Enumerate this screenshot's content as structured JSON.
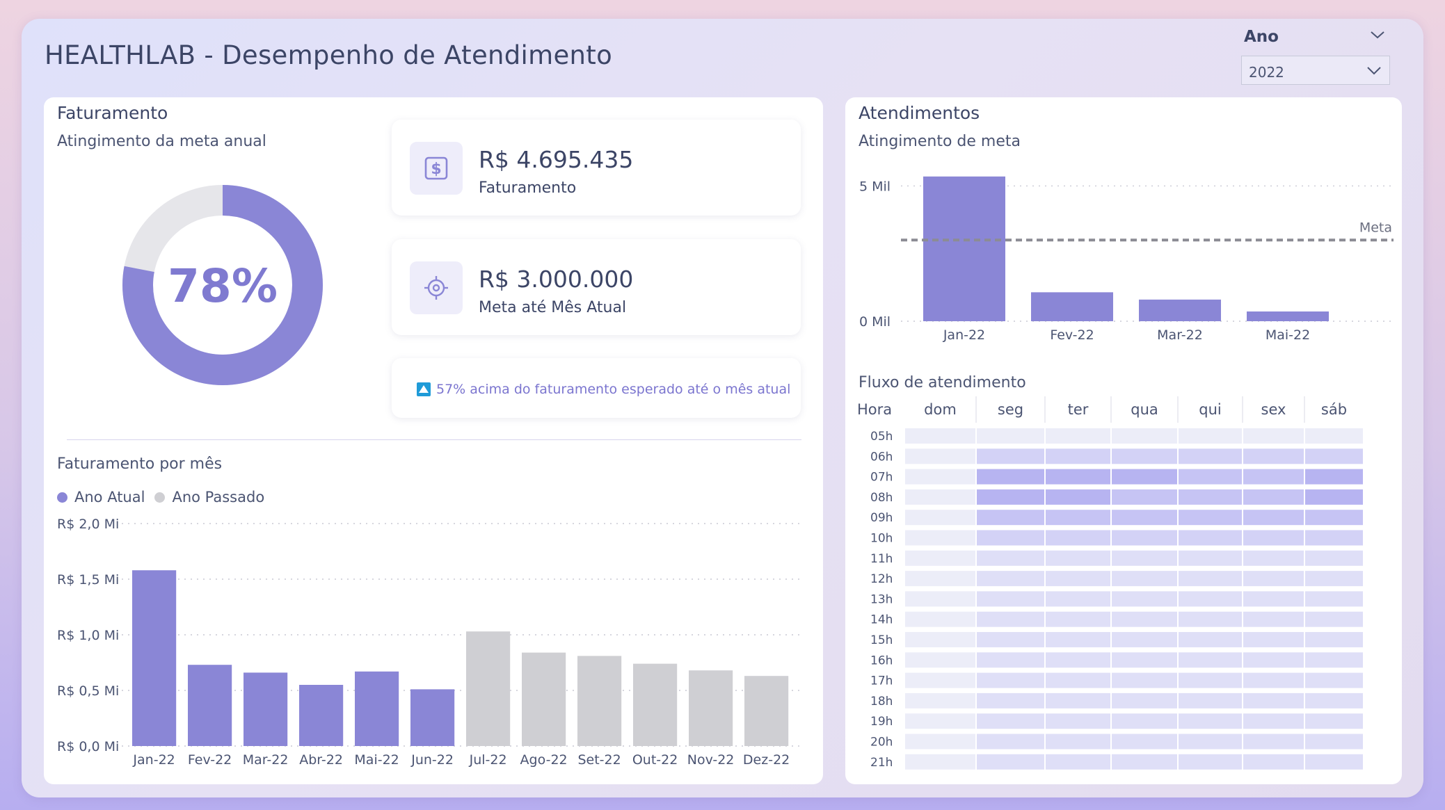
{
  "header": {
    "title": "HEALTHLAB - Desempenho de Atendimento"
  },
  "slicer": {
    "label": "Ano",
    "value": "2022"
  },
  "faturamento": {
    "title": "Faturamento",
    "donut_subtitle": "Atingimento da meta anual",
    "donut_percent": 78,
    "donut_label": "78%",
    "kpi_revenue": {
      "value": "R$ 4.695.435",
      "label": "Faturamento",
      "icon": "dollar-icon"
    },
    "kpi_target": {
      "value": "R$ 3.000.000",
      "label": "Meta até Mês Atual",
      "icon": "target-icon"
    },
    "note": "57% acima do faturamento esperado até o mês atual"
  },
  "monthly": {
    "title": "Faturamento por mês",
    "legend": [
      {
        "name": "Ano Atual",
        "color": "#8a86d6"
      },
      {
        "name": "Ano Passado",
        "color": "#cfcfd3"
      }
    ]
  },
  "atendimentos": {
    "title": "Atendimentos",
    "subtitle": "Atingimento de meta",
    "meta_label": "Meta"
  },
  "fluxo": {
    "title": "Fluxo de atendimento"
  },
  "chart_data": [
    {
      "type": "pie",
      "name": "donut",
      "values": [
        78,
        22
      ],
      "labels": [
        "",
        ""
      ],
      "center_label": "78%",
      "colors": [
        "#8a86d6",
        "#e6e6ea"
      ]
    },
    {
      "type": "bar",
      "name": "faturamento-por-mes",
      "categories": [
        "Jan-22",
        "Fev-22",
        "Mar-22",
        "Abr-22",
        "Mai-22",
        "Jun-22",
        "Jul-22",
        "Ago-22",
        "Set-22",
        "Out-22",
        "Nov-22",
        "Dez-22"
      ],
      "values": [
        1.58,
        0.73,
        0.66,
        0.55,
        0.67,
        0.51,
        1.03,
        0.84,
        0.81,
        0.74,
        0.68,
        0.63
      ],
      "series_of_bar": [
        "Ano Atual",
        "Ano Atual",
        "Ano Atual",
        "Ano Atual",
        "Ano Atual",
        "Ano Atual",
        "Ano Passado",
        "Ano Passado",
        "Ano Passado",
        "Ano Passado",
        "Ano Passado",
        "Ano Passado"
      ],
      "yticks": [
        "R$ 2,0 Mi",
        "R$ 1,5 Mi",
        "R$ 1,0 Mi",
        "R$ 0,5 Mi",
        "R$ 0,0 Mi"
      ],
      "ytick_values": [
        2.0,
        1.5,
        1.0,
        0.5,
        0.0
      ],
      "ylim": [
        0,
        2.0
      ],
      "grid": true
    },
    {
      "type": "bar",
      "name": "atendimentos-meta",
      "categories": [
        "Jan-22",
        "Fev-22",
        "Mar-22",
        "Mai-22"
      ],
      "values": [
        5350,
        1070,
        800,
        360
      ],
      "meta": 3000,
      "yticks": [
        "5 Mil",
        "0 Mil"
      ],
      "ytick_values": [
        5000,
        0
      ],
      "ylim": [
        0,
        5500
      ],
      "grid": true
    },
    {
      "type": "heatmap",
      "name": "fluxo-de-atendimento",
      "corner_label": "Hora",
      "columns": [
        "dom",
        "seg",
        "ter",
        "qua",
        "qui",
        "sex",
        "sáb"
      ],
      "rows": [
        "05h",
        "06h",
        "07h",
        "08h",
        "09h",
        "10h",
        "11h",
        "12h",
        "13h",
        "14h",
        "15h",
        "16h",
        "17h",
        "18h",
        "19h",
        "20h",
        "21h"
      ],
      "intensity": [
        [
          0,
          0,
          0,
          0,
          0,
          0,
          0
        ],
        [
          0,
          2,
          2,
          2,
          2,
          2,
          2
        ],
        [
          0,
          4,
          4,
          4,
          3,
          3,
          4
        ],
        [
          0,
          4,
          4,
          3,
          3,
          3,
          4
        ],
        [
          0,
          3,
          3,
          3,
          3,
          3,
          3
        ],
        [
          0,
          2,
          2,
          2,
          2,
          2,
          2
        ],
        [
          0,
          1,
          1,
          1,
          1,
          1,
          1
        ],
        [
          0,
          1,
          1,
          1,
          1,
          1,
          1
        ],
        [
          0,
          1,
          1,
          1,
          1,
          1,
          1
        ],
        [
          0,
          1,
          1,
          1,
          1,
          1,
          1
        ],
        [
          0,
          1,
          1,
          1,
          1,
          1,
          1
        ],
        [
          0,
          1,
          1,
          1,
          1,
          1,
          1
        ],
        [
          0,
          1,
          1,
          1,
          1,
          1,
          1
        ],
        [
          0,
          1,
          1,
          1,
          1,
          1,
          1
        ],
        [
          0,
          1,
          1,
          1,
          1,
          1,
          1
        ],
        [
          0,
          1,
          1,
          1,
          1,
          1,
          1
        ],
        [
          0,
          1,
          1,
          1,
          1,
          1,
          1
        ]
      ],
      "colors": [
        "#ecedf8",
        "#dfdff7",
        "#d3d2f6",
        "#c6c4f4",
        "#b7b4f1"
      ]
    }
  ]
}
